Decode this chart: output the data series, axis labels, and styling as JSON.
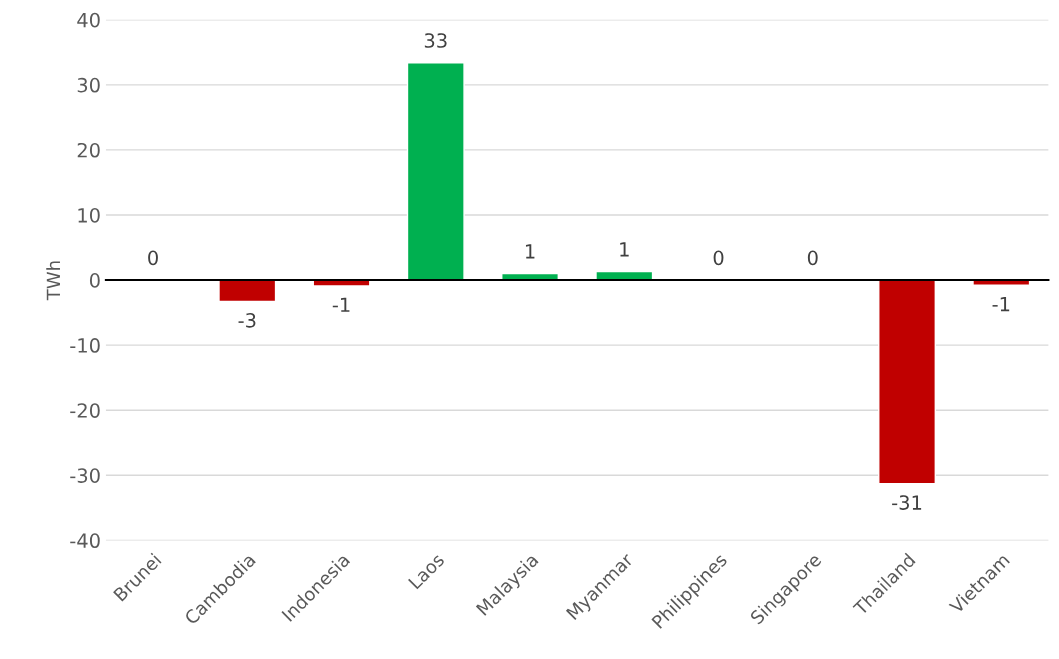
{
  "chart_data": {
    "type": "bar",
    "ylabel": "TWh",
    "categories": [
      "Brunei",
      "Cambodia",
      "Indonesia",
      "Laos",
      "Malaysia",
      "Myanmar",
      "Philippines",
      "Singapore",
      "Thailand",
      "Vietnam"
    ],
    "values": [
      0,
      -3.3,
      -0.9,
      33.4,
      1.0,
      1.3,
      0,
      0,
      -31.3,
      -0.8
    ],
    "value_labels": [
      "0",
      "-3",
      "-1",
      "33",
      "1",
      "1",
      "0",
      "0",
      "-31",
      "-1"
    ],
    "colors": [
      null,
      "#c00000",
      "#c00000",
      "#00b050",
      "#00b050",
      "#00b050",
      null,
      null,
      "#c00000",
      "#c00000"
    ],
    "ylim": [
      -40,
      40
    ],
    "yticks": [
      -40,
      -30,
      -20,
      -10,
      0,
      10,
      20,
      30,
      40
    ],
    "grid": "y"
  }
}
